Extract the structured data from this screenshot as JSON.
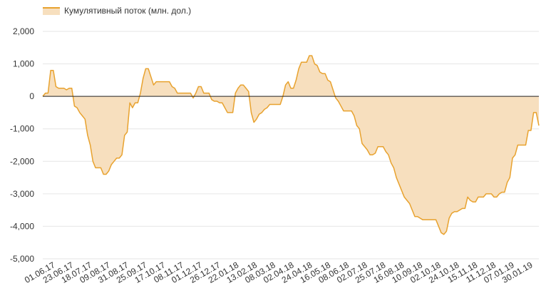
{
  "chart_data": {
    "type": "area",
    "legend": {
      "position": "top-left",
      "entries": [
        "Кумулятивный поток (млн. дол.)"
      ]
    },
    "series": [
      {
        "name": "Кумулятивный поток (млн. дол.)",
        "color": "#e8a22e",
        "fill": "#f7dfbe"
      }
    ],
    "y_ticks": [
      {
        "value": 2000,
        "label": "2,000"
      },
      {
        "value": 1000,
        "label": "1,000"
      },
      {
        "value": 0,
        "label": "0"
      },
      {
        "value": -1000,
        "label": "-1,000"
      },
      {
        "value": -2000,
        "label": "-2,000"
      },
      {
        "value": -3000,
        "label": "-3,000"
      },
      {
        "value": -4000,
        "label": "-4,000"
      },
      {
        "value": -5000,
        "label": "-5,000"
      }
    ],
    "ylim": [
      -5000,
      2000
    ],
    "grid": true,
    "x_tick_labels": [
      "01.06.17",
      "23.06.17",
      "18.07.17",
      "09.08.17",
      "31.08.17",
      "25.09.17",
      "17.10.17",
      "08.11.17",
      "01.12.17",
      "26.12.17",
      "22.01.18",
      "13.02.18",
      "08.03.18",
      "02.04.18",
      "24.04.18",
      "16.05.18",
      "08.06.18",
      "02.07.18",
      "25.07.18",
      "16.08.18",
      "10.09.18",
      "02.10.18",
      "24.10.18",
      "15.11.18",
      "11.12.18",
      "07.01.19",
      "30.01.19"
    ],
    "values": [
      0,
      100,
      100,
      800,
      800,
      300,
      250,
      250,
      250,
      200,
      250,
      250,
      -300,
      -350,
      -500,
      -600,
      -700,
      -1200,
      -1500,
      -2000,
      -2200,
      -2200,
      -2200,
      -2400,
      -2400,
      -2300,
      -2100,
      -2000,
      -1900,
      -1900,
      -1800,
      -1200,
      -1100,
      -200,
      -350,
      -200,
      -200,
      100,
      550,
      850,
      850,
      600,
      350,
      450,
      450,
      450,
      450,
      450,
      450,
      300,
      250,
      100,
      100,
      100,
      100,
      100,
      100,
      -50,
      100,
      300,
      300,
      100,
      100,
      100,
      -100,
      -150,
      -150,
      -200,
      -200,
      -350,
      -500,
      -500,
      -500,
      100,
      250,
      350,
      350,
      250,
      150,
      -500,
      -800,
      -700,
      -550,
      -500,
      -400,
      -350,
      -250,
      -250,
      -250,
      -250,
      -250,
      0,
      350,
      450,
      250,
      250,
      500,
      850,
      1050,
      1050,
      1050,
      1250,
      1250,
      1000,
      950,
      750,
      700,
      700,
      500,
      450,
      200,
      -50,
      -150,
      -300,
      -450,
      -450,
      -450,
      -450,
      -600,
      -900,
      -1000,
      -1450,
      -1550,
      -1650,
      -1800,
      -1800,
      -1750,
      -1550,
      -1550,
      -1550,
      -1700,
      -1800,
      -2050,
      -2200,
      -2500,
      -2700,
      -2900,
      -3100,
      -3200,
      -3300,
      -3500,
      -3700,
      -3700,
      -3750,
      -3800,
      -3800,
      -3800,
      -3800,
      -3800,
      -3800,
      -4000,
      -4200,
      -4250,
      -4150,
      -3750,
      -3600,
      -3550,
      -3550,
      -3500,
      -3450,
      -3450,
      -3100,
      -3200,
      -3250,
      -3250,
      -3100,
      -3100,
      -3100,
      -3000,
      -3000,
      -3000,
      -3100,
      -3100,
      -3000,
      -2950,
      -2950,
      -2650,
      -2500,
      -1900,
      -1800,
      -1500,
      -1500,
      -1500,
      -1500,
      -1050,
      -1050,
      -500,
      -500,
      -900
    ],
    "zero_line": true
  }
}
